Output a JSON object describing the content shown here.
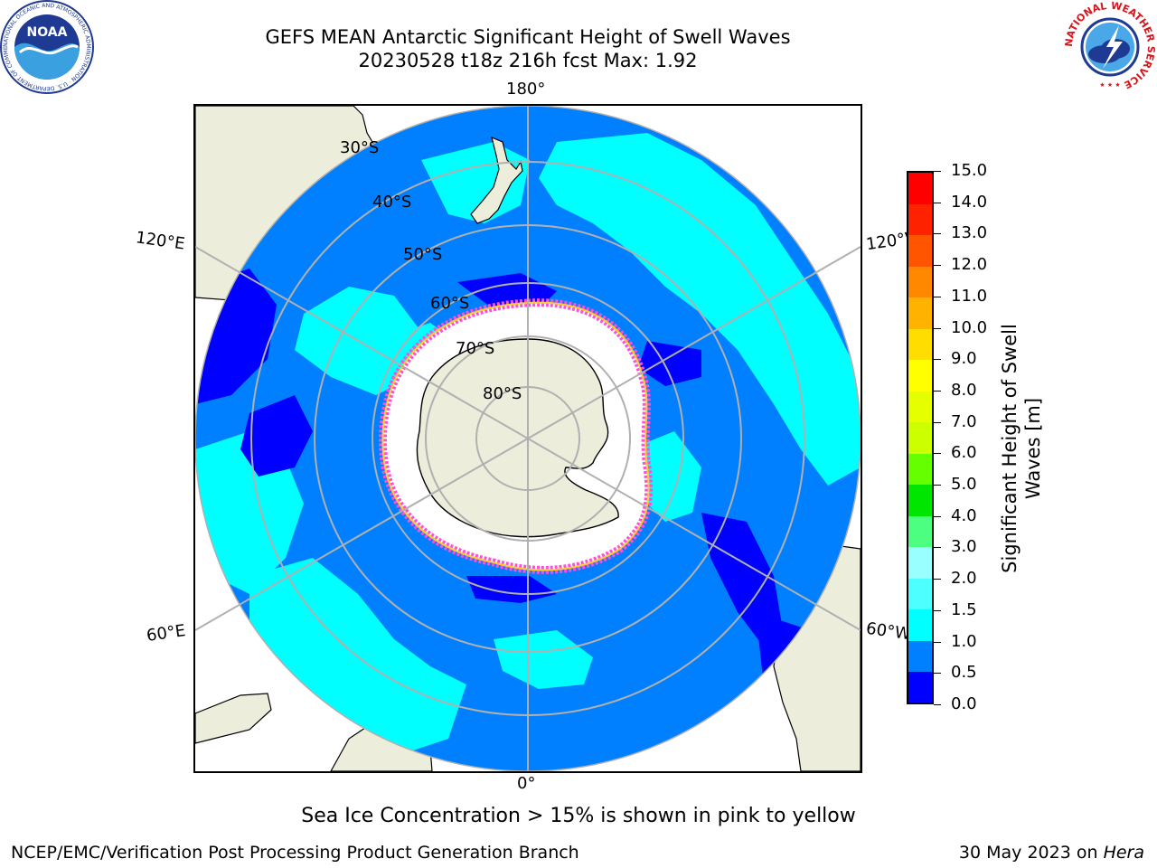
{
  "header": {
    "title_line1": "GEFS MEAN Antarctic Significant Height of Swell Waves",
    "title_line2": "20230528 t18z 216h fcst   Max: 1.92"
  },
  "logos": {
    "noaa_text": "NOAA",
    "noaa_ring_text": "NATIONAL OCEANIC AND ATMOSPHERIC ADMINISTRATION · U.S. DEPARTMENT OF COMMERCE",
    "nws_ring_text": "NATIONAL WEATHER SERVICE"
  },
  "map": {
    "longitude_labels": {
      "top": "180°",
      "bottom": "0°",
      "upper_left": "120°E",
      "lower_left": "60°E",
      "upper_right": "120°W",
      "lower_right": "60°W"
    },
    "latitude_labels": [
      "30°S",
      "40°S",
      "50°S",
      "60°S",
      "70°S",
      "80°S"
    ],
    "colors": {
      "land": "#ededdc",
      "ice_white": "#ffffff",
      "ice_edge_pink": "#ff4fd8",
      "ice_edge_yellow": "#ffcc33",
      "graticule": "#b0b0b0"
    }
  },
  "colorbar": {
    "title": "Significant Height of Swell Waves [m]",
    "ticks": [
      "0.0",
      "0.5",
      "1.0",
      "1.5",
      "2.0",
      "3.0",
      "4.0",
      "5.0",
      "6.0",
      "7.0",
      "8.0",
      "9.0",
      "10.0",
      "11.0",
      "12.0",
      "13.0",
      "14.0",
      "15.0"
    ],
    "colors": [
      "#0000ff",
      "#0080ff",
      "#00ffff",
      "#4dffff",
      "#99ffff",
      "#4dff80",
      "#00e600",
      "#66ff00",
      "#ccff00",
      "#e6ff00",
      "#ffff00",
      "#ffdd00",
      "#ffb300",
      "#ff8800",
      "#ff5500",
      "#ff2200",
      "#ff0000"
    ]
  },
  "bottom_note": "Sea Ice Concentration > 15% is shown in pink to yellow",
  "footer": {
    "left": "NCEP/EMC/Verification Post Processing Product Generation Branch",
    "right_prefix": "30 May 2023 on",
    "right_machine": "Hera"
  }
}
